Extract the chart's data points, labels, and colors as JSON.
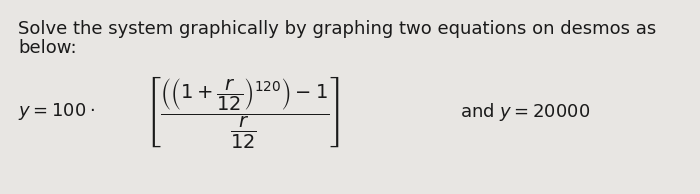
{
  "line1": "Solve the system graphically by graphing two equations on desmos as",
  "line2": "below:",
  "bg_color": "#e8e6e3",
  "text_color": "#1a1a1a",
  "font_size_text": 13.0,
  "font_size_math": 13.0,
  "fig_width": 7.0,
  "fig_height": 1.94,
  "formula": "$\\left[\\dfrac{\\left(\\left(1+\\dfrac{r}{12}\\right)^{120}\\right)-1}{\\dfrac{r}{12}}\\right]$",
  "y100": "$y = 100 \\cdot$",
  "and_eq": "and $y = 20000$"
}
